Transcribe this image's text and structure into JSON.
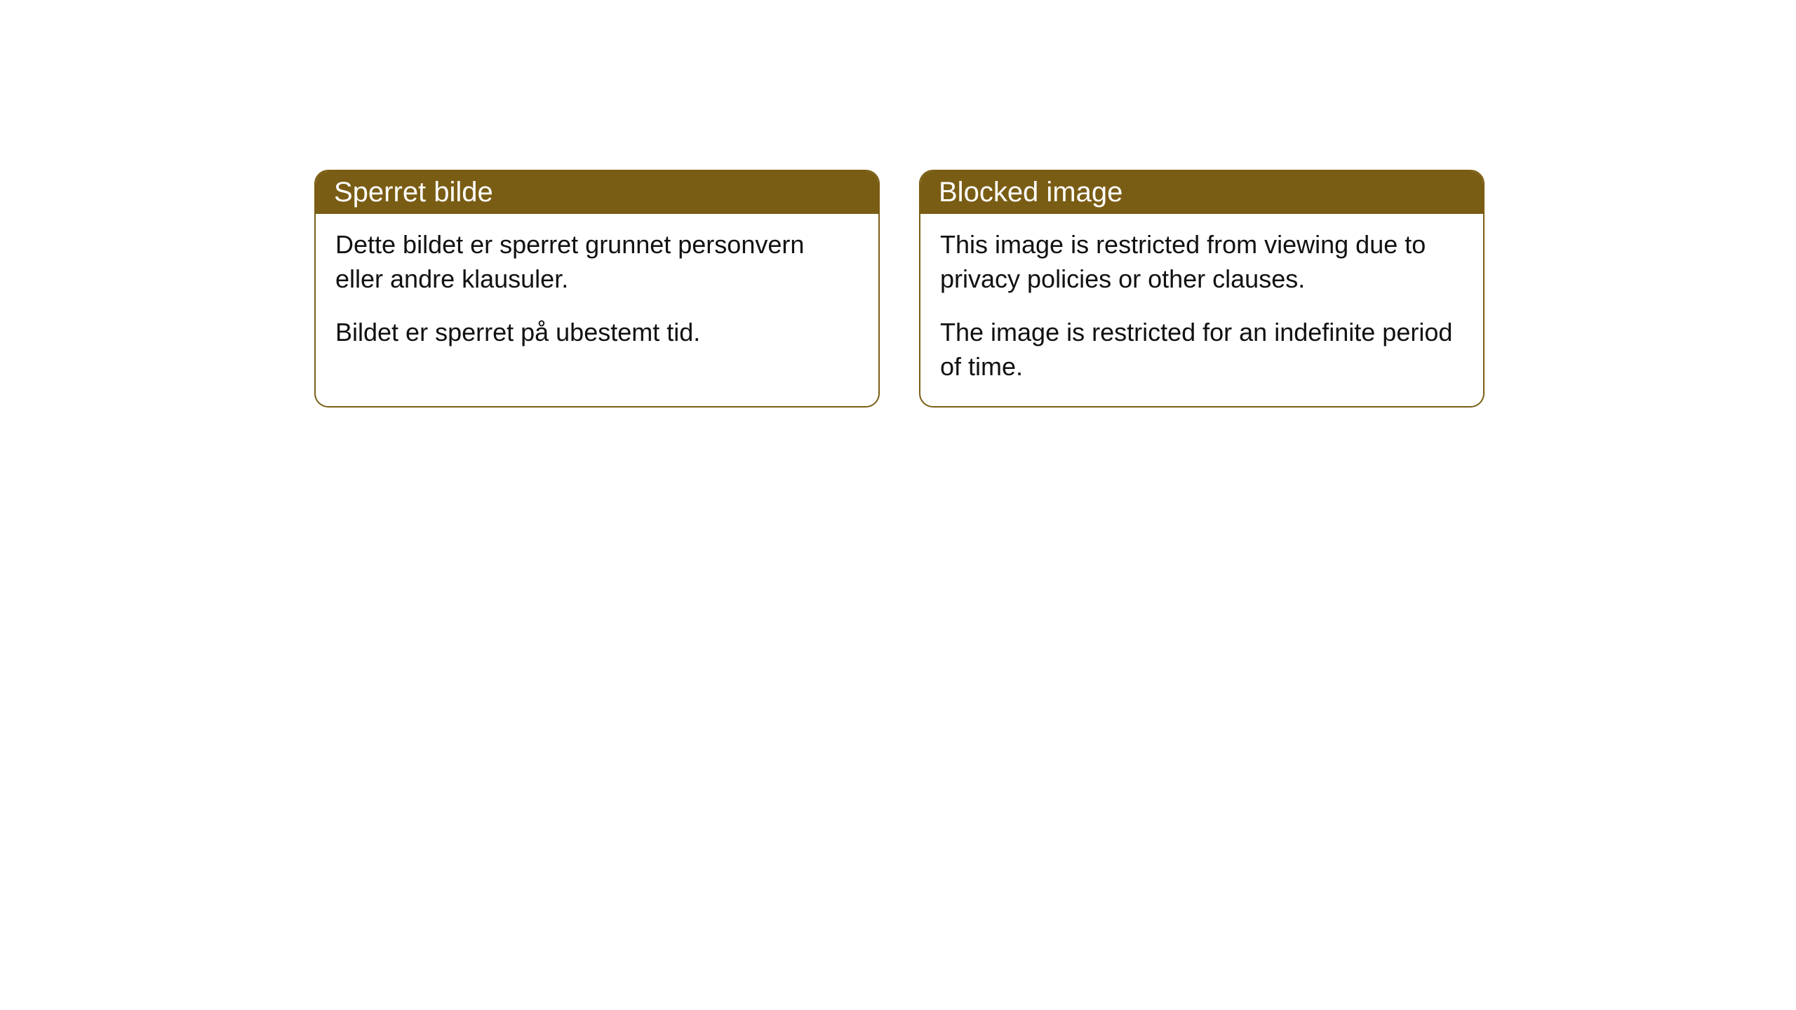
{
  "notices": [
    {
      "header": "Sperret bilde",
      "paragraph1": "Dette bildet er sperret grunnet personvern eller andre klausuler.",
      "paragraph2": "Bildet er sperret på ubestemt tid."
    },
    {
      "header": "Blocked image",
      "paragraph1": "This image is restricted from viewing due to privacy policies or other clauses.",
      "paragraph2": "The image is restricted for an indefinite period of time."
    }
  ],
  "style": {
    "header_bg": "#7a5d14",
    "header_text_color": "#ffffff",
    "border_color": "#7a5d14",
    "body_text_color": "#111111",
    "body_bg": "#ffffff",
    "border_radius": 20,
    "header_fontsize": 40,
    "body_fontsize": 36
  }
}
